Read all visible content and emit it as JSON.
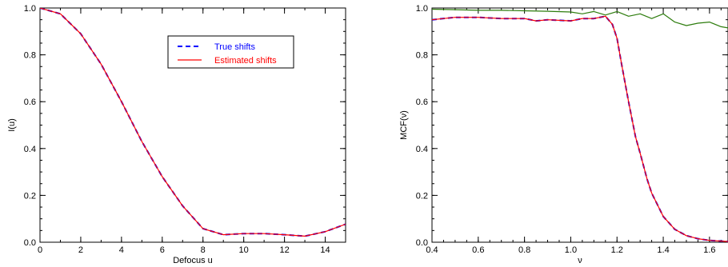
{
  "chart_data": [
    {
      "type": "line",
      "title": "",
      "xlabel": "Defocus u",
      "ylabel": "I(u)",
      "xlim": [
        0,
        15
      ],
      "ylim": [
        0,
        1.0
      ],
      "xticks": [
        "0",
        "2",
        "4",
        "6",
        "8",
        "10",
        "12",
        "14"
      ],
      "yticks": [
        "0.0",
        "0.2",
        "0.4",
        "0.6",
        "0.8",
        "1.0"
      ],
      "legend_position": "top-right",
      "series": [
        {
          "name": "True shifts",
          "color": "#0000ff",
          "style": "dashed",
          "x": [
            0,
            1,
            2,
            3,
            4,
            5,
            6,
            7,
            8,
            9,
            10,
            11,
            12,
            13,
            14,
            15
          ],
          "y": [
            1.0,
            0.975,
            0.89,
            0.76,
            0.6,
            0.43,
            0.28,
            0.155,
            0.058,
            0.032,
            0.037,
            0.037,
            0.032,
            0.026,
            0.045,
            0.077
          ]
        },
        {
          "name": "Estimated shifts",
          "color": "#ff0000",
          "style": "solid",
          "x": [
            0,
            1,
            2,
            3,
            4,
            5,
            6,
            7,
            8,
            9,
            10,
            11,
            12,
            13,
            14,
            15
          ],
          "y": [
            1.0,
            0.975,
            0.89,
            0.76,
            0.6,
            0.43,
            0.28,
            0.155,
            0.058,
            0.032,
            0.037,
            0.037,
            0.032,
            0.026,
            0.045,
            0.077
          ]
        }
      ]
    },
    {
      "type": "line",
      "title": "",
      "xlabel": "ν",
      "ylabel": "MCF(ν)",
      "xlim": [
        0.4,
        1.68
      ],
      "ylim": [
        0,
        1.0
      ],
      "xticks": [
        "0.4",
        "0.6",
        "0.8",
        "1.0",
        "1.2",
        "1.4",
        "1.6"
      ],
      "yticks": [
        "0.0",
        "0.2",
        "0.4",
        "0.6",
        "0.8",
        "1.0"
      ],
      "series": [
        {
          "color": "#0000ff",
          "style": "dashed",
          "x": [
            0.4,
            0.5,
            0.6,
            0.7,
            0.8,
            0.85,
            0.9,
            1.0,
            1.05,
            1.1,
            1.15,
            1.18,
            1.2,
            1.22,
            1.25,
            1.28,
            1.3,
            1.33,
            1.35,
            1.38,
            1.4,
            1.45,
            1.5,
            1.55,
            1.6,
            1.68
          ],
          "y": [
            0.95,
            0.96,
            0.96,
            0.955,
            0.955,
            0.945,
            0.95,
            0.945,
            0.955,
            0.955,
            0.965,
            0.93,
            0.87,
            0.76,
            0.6,
            0.45,
            0.38,
            0.27,
            0.21,
            0.15,
            0.11,
            0.055,
            0.028,
            0.015,
            0.008,
            0.003
          ]
        },
        {
          "color": "#ff0000",
          "style": "solid",
          "x": [
            0.4,
            0.5,
            0.6,
            0.7,
            0.8,
            0.85,
            0.9,
            1.0,
            1.05,
            1.1,
            1.15,
            1.18,
            1.2,
            1.22,
            1.25,
            1.28,
            1.3,
            1.33,
            1.35,
            1.38,
            1.4,
            1.45,
            1.5,
            1.55,
            1.6,
            1.68
          ],
          "y": [
            0.95,
            0.96,
            0.96,
            0.955,
            0.955,
            0.945,
            0.95,
            0.945,
            0.955,
            0.955,
            0.965,
            0.93,
            0.87,
            0.76,
            0.6,
            0.45,
            0.38,
            0.27,
            0.21,
            0.15,
            0.11,
            0.055,
            0.028,
            0.015,
            0.008,
            0.003
          ]
        },
        {
          "color": "#2e7d0e",
          "style": "solid",
          "x": [
            0.4,
            0.5,
            0.6,
            0.7,
            0.8,
            0.9,
            1.0,
            1.05,
            1.1,
            1.15,
            1.2,
            1.25,
            1.3,
            1.35,
            1.4,
            1.45,
            1.5,
            1.55,
            1.6,
            1.65,
            1.68
          ],
          "y": [
            0.995,
            0.993,
            0.99,
            0.99,
            0.988,
            0.986,
            0.983,
            0.975,
            0.985,
            0.97,
            0.985,
            0.965,
            0.975,
            0.955,
            0.975,
            0.94,
            0.925,
            0.935,
            0.94,
            0.92,
            0.915
          ]
        }
      ]
    }
  ]
}
